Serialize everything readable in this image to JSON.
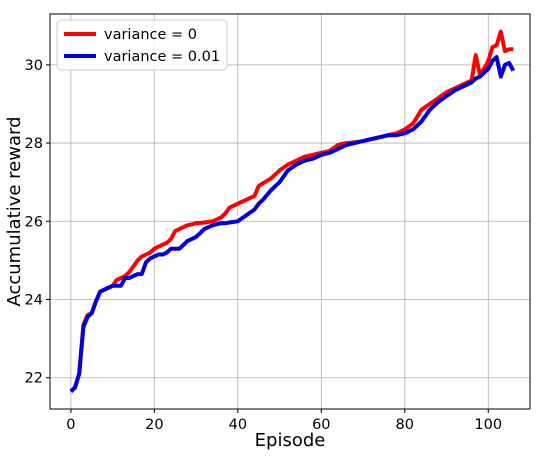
{
  "chart_data": {
    "type": "line",
    "title": "",
    "xlabel": "Episode",
    "ylabel": "Accumulative reward",
    "xlim": [
      -5,
      110
    ],
    "ylim": [
      21.2,
      31.3
    ],
    "xticks": [
      0,
      20,
      40,
      60,
      80,
      100
    ],
    "yticks": [
      22,
      24,
      26,
      28,
      30
    ],
    "grid": true,
    "legend": "upper-left",
    "series": [
      {
        "name": "variance = 0",
        "color": "#ff0000",
        "x": [
          0,
          1,
          2,
          3,
          4,
          5,
          6,
          7,
          8,
          9,
          10,
          11,
          12,
          13,
          14,
          15,
          16,
          17,
          18,
          19,
          20,
          21,
          22,
          23,
          24,
          25,
          26,
          27,
          28,
          29,
          30,
          32,
          34,
          36,
          37,
          38,
          40,
          42,
          44,
          45,
          46,
          48,
          50,
          52,
          54,
          56,
          58,
          60,
          62,
          64,
          65,
          66,
          68,
          70,
          72,
          74,
          76,
          78,
          80,
          82,
          84,
          86,
          88,
          90,
          92,
          94,
          96,
          97,
          98,
          99,
          100,
          101,
          102,
          103,
          104,
          105,
          106
        ],
        "y": [
          21.65,
          21.75,
          22.1,
          23.35,
          23.6,
          23.65,
          23.95,
          24.2,
          24.25,
          24.3,
          24.35,
          24.5,
          24.55,
          24.6,
          24.7,
          24.85,
          25.0,
          25.1,
          25.15,
          25.2,
          25.3,
          25.35,
          25.4,
          25.45,
          25.55,
          25.75,
          25.8,
          25.85,
          25.9,
          25.92,
          25.95,
          25.97,
          26.0,
          26.1,
          26.2,
          26.35,
          26.45,
          26.55,
          26.65,
          26.9,
          26.97,
          27.1,
          27.3,
          27.45,
          27.55,
          27.65,
          27.7,
          27.75,
          27.8,
          27.95,
          27.98,
          28.0,
          28.02,
          28.05,
          28.1,
          28.15,
          28.2,
          28.25,
          28.35,
          28.5,
          28.85,
          29.0,
          29.15,
          29.3,
          29.4,
          29.5,
          29.6,
          30.25,
          29.75,
          29.9,
          30.1,
          30.45,
          30.5,
          30.85,
          30.35,
          30.4,
          30.4
        ]
      },
      {
        "name": "variance = 0.01",
        "color": "#0000dd",
        "x": [
          0,
          1,
          2,
          3,
          4,
          5,
          6,
          7,
          8,
          9,
          10,
          11,
          12,
          13,
          14,
          15,
          16,
          17,
          18,
          19,
          20,
          21,
          22,
          23,
          24,
          25,
          26,
          27,
          28,
          29,
          30,
          32,
          34,
          36,
          37,
          38,
          40,
          42,
          44,
          45,
          46,
          48,
          50,
          52,
          54,
          56,
          58,
          60,
          62,
          64,
          65,
          66,
          68,
          70,
          72,
          74,
          76,
          78,
          80,
          82,
          84,
          86,
          88,
          90,
          92,
          94,
          96,
          97,
          98,
          99,
          100,
          101,
          102,
          103,
          104,
          105,
          106
        ],
        "y": [
          21.65,
          21.75,
          22.1,
          23.3,
          23.55,
          23.65,
          23.95,
          24.2,
          24.25,
          24.3,
          24.35,
          24.35,
          24.35,
          24.55,
          24.55,
          24.6,
          24.65,
          24.65,
          24.95,
          25.05,
          25.1,
          25.15,
          25.15,
          25.2,
          25.3,
          25.3,
          25.3,
          25.4,
          25.5,
          25.55,
          25.6,
          25.8,
          25.9,
          25.95,
          25.95,
          25.97,
          26.0,
          26.15,
          26.3,
          26.45,
          26.55,
          26.8,
          27.0,
          27.3,
          27.45,
          27.55,
          27.6,
          27.7,
          27.75,
          27.85,
          27.9,
          27.95,
          28.0,
          28.05,
          28.1,
          28.15,
          28.2,
          28.2,
          28.25,
          28.35,
          28.55,
          28.85,
          29.05,
          29.2,
          29.35,
          29.45,
          29.55,
          29.65,
          29.7,
          29.8,
          29.9,
          30.1,
          30.2,
          29.7,
          30.0,
          30.05,
          29.85
        ]
      }
    ]
  }
}
